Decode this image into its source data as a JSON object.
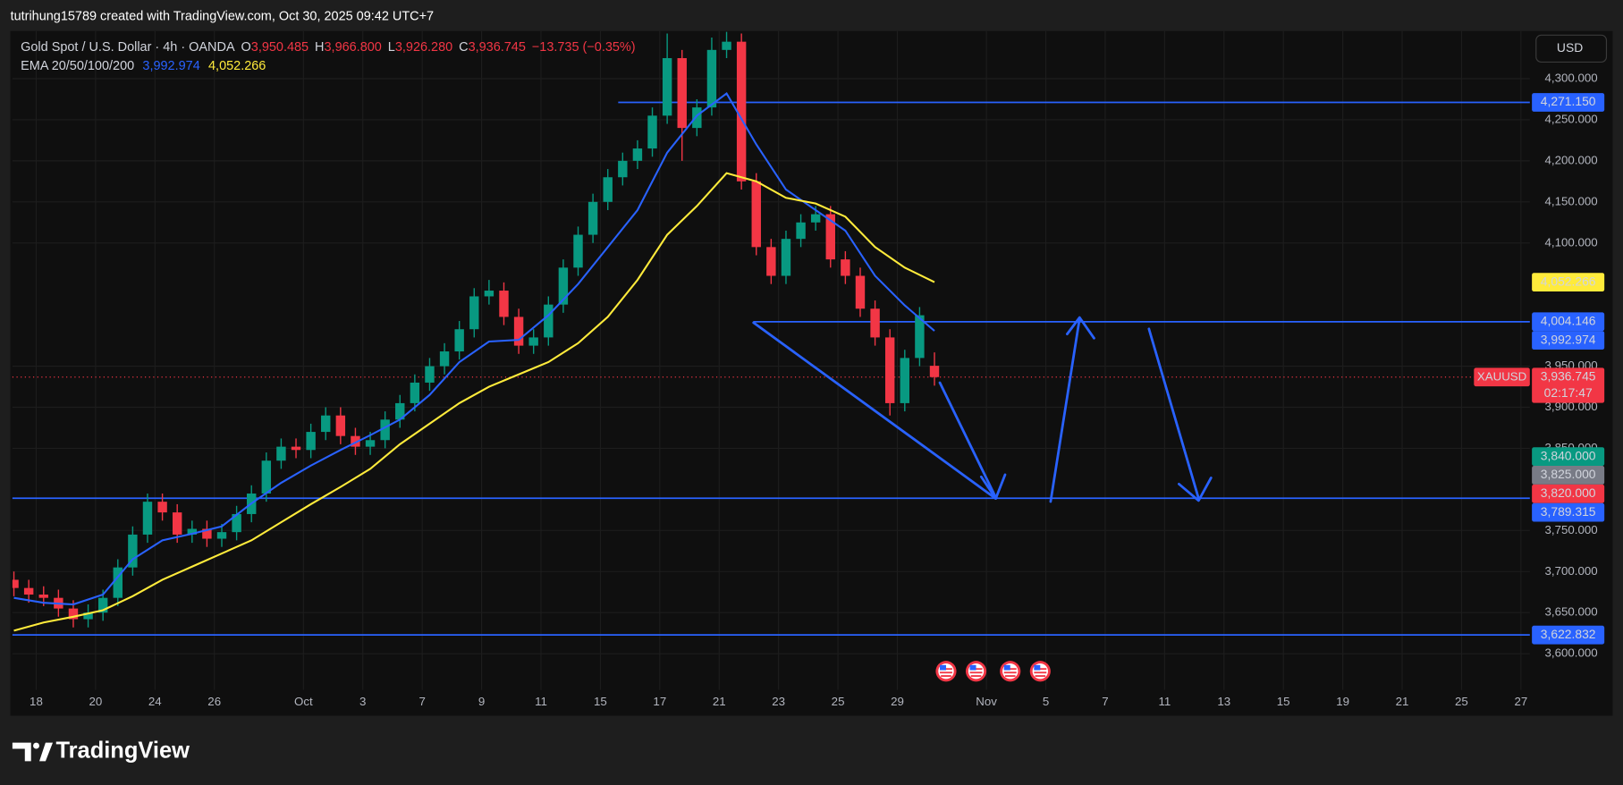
{
  "header": {
    "caption": "tutrihung15789 created with TradingView.com, Oct 30, 2025 09:42 UTC+7"
  },
  "chart_data": {
    "type": "candlestick",
    "symbol_title": "Gold Spot / U.S. Dollar · 4h · OANDA",
    "ohlc_legend": [
      {
        "label": "O",
        "value": "3,950.485"
      },
      {
        "label": "H",
        "value": "3,966.800"
      },
      {
        "label": "L",
        "value": "3,926.280"
      },
      {
        "label": "C",
        "value": "3,936.745"
      }
    ],
    "change": "−13.735 (−0.35%)",
    "indicator": "EMA 20/50/100/200",
    "currency": "USD",
    "up_color": "#089981",
    "down_color": "#f23645",
    "x": [
      -0.75,
      -0.25,
      0.25,
      0.75,
      1.25,
      1.75,
      2.25,
      2.75,
      3.25,
      3.75,
      4.25,
      4.75,
      5.25,
      5.75,
      6.25,
      6.75,
      7.25,
      7.75,
      8.25,
      8.75,
      9.25,
      9.75,
      10.25,
      10.75,
      11.25,
      11.75,
      12.25,
      12.75,
      13.25,
      13.75,
      14.25,
      14.75,
      15.25,
      15.75,
      16.25,
      16.75,
      17.25,
      17.75,
      18.25,
      18.75,
      19.25,
      19.75,
      20.25,
      20.75,
      21.25,
      21.75,
      22.25,
      22.75,
      23.25,
      23.75,
      24.25,
      24.75,
      25.25,
      25.75,
      26.25,
      26.75,
      27.25,
      27.75,
      28.25,
      28.75,
      29.25,
      29.75,
      30.25
    ],
    "open": [
      3690,
      3680,
      3672,
      3668,
      3655,
      3642,
      3650,
      3668,
      3705,
      3745,
      3785,
      3772,
      3745,
      3752,
      3740,
      3748,
      3770,
      3795,
      3835,
      3852,
      3848,
      3870,
      3890,
      3865,
      3852,
      3860,
      3885,
      3905,
      3930,
      3950,
      3968,
      3995,
      4035,
      4042,
      4010,
      3975,
      3985,
      4025,
      4070,
      4110,
      4150,
      4180,
      4200,
      4215,
      4255,
      4325,
      4240,
      4265,
      4335,
      4345,
      4175,
      4095,
      4060,
      4105,
      4125,
      4135,
      4080,
      4060,
      4020,
      3985,
      3905,
      3960,
      3950.485
    ],
    "high": [
      3700,
      3690,
      3682,
      3678,
      3665,
      3660,
      3678,
      3715,
      3755,
      3795,
      3795,
      3782,
      3762,
      3762,
      3758,
      3780,
      3805,
      3845,
      3862,
      3862,
      3880,
      3900,
      3900,
      3875,
      3870,
      3895,
      3915,
      3940,
      3960,
      3978,
      4005,
      4045,
      4055,
      4052,
      4020,
      3995,
      4035,
      4080,
      4120,
      4160,
      4190,
      4210,
      4225,
      4265,
      4355,
      4335,
      4275,
      4350,
      4357,
      4355,
      4185,
      4105,
      4115,
      4135,
      4145,
      4145,
      4090,
      4070,
      4030,
      3995,
      3970,
      4022,
      3966.8
    ],
    "low": [
      3670,
      3662,
      3658,
      3645,
      3632,
      3632,
      3640,
      3658,
      3695,
      3735,
      3762,
      3735,
      3735,
      3730,
      3730,
      3738,
      3760,
      3785,
      3825,
      3838,
      3838,
      3860,
      3855,
      3842,
      3842,
      3850,
      3875,
      3895,
      3920,
      3940,
      3958,
      3985,
      4025,
      4000,
      3965,
      3965,
      3975,
      4015,
      4060,
      4100,
      4140,
      4170,
      4190,
      4205,
      4245,
      4200,
      4230,
      4255,
      4325,
      4165,
      4085,
      4050,
      4050,
      4095,
      4115,
      4070,
      4050,
      4010,
      3975,
      3890,
      3895,
      3950,
      3926.28
    ],
    "close": [
      3680,
      3672,
      3668,
      3655,
      3642,
      3650,
      3668,
      3705,
      3745,
      3785,
      3772,
      3745,
      3752,
      3740,
      3748,
      3770,
      3795,
      3835,
      3852,
      3848,
      3870,
      3890,
      3865,
      3852,
      3860,
      3885,
      3905,
      3930,
      3950,
      3968,
      3995,
      4035,
      4042,
      4010,
      3975,
      3985,
      4025,
      4070,
      4110,
      4150,
      4180,
      4200,
      4215,
      4255,
      4325,
      4240,
      4265,
      4335,
      4345,
      4175,
      4095,
      4060,
      4105,
      4125,
      4135,
      4080,
      4060,
      4020,
      3985,
      3905,
      3960,
      4012,
      3936.745
    ],
    "ema_x": [
      -0.75,
      0.25,
      1.25,
      2.25,
      3.25,
      4.25,
      5.25,
      6.25,
      7.25,
      8.25,
      9.25,
      10.25,
      11.25,
      12.25,
      13.25,
      14.25,
      15.25,
      16.25,
      17.25,
      18.25,
      19.25,
      20.25,
      21.25,
      22.25,
      23.25,
      24.25,
      25.25,
      26.25,
      27.25,
      28.25,
      29.25,
      30.25
    ],
    "ema": [
      {
        "color": "#2962ff",
        "legend_value": "3,992.974",
        "values": [
          3668,
          3662,
          3660,
          3672,
          3715,
          3738,
          3746,
          3755,
          3783,
          3808,
          3829,
          3848,
          3866,
          3885,
          3915,
          3955,
          3980,
          3982,
          4012,
          4050,
          4095,
          4140,
          4210,
          4255,
          4282,
          4220,
          4165,
          4140,
          4115,
          4060,
          4024,
          3992.974
        ]
      },
      {
        "color": "#ffeb3b",
        "legend_value": "4,052.266",
        "values": [
          3628,
          3638,
          3645,
          3653,
          3670,
          3690,
          3706,
          3722,
          3738,
          3760,
          3782,
          3803,
          3825,
          3855,
          3880,
          3905,
          3925,
          3940,
          3955,
          3978,
          4010,
          4055,
          4110,
          4145,
          4185,
          4175,
          4155,
          4148,
          4132,
          4095,
          4070,
          4052.266
        ]
      }
    ],
    "xlim": [
      -0.8,
      50.3
    ],
    "xticks": [
      {
        "value": 0,
        "label": "18"
      },
      {
        "value": 2,
        "label": "20"
      },
      {
        "value": 4,
        "label": "24"
      },
      {
        "value": 6,
        "label": "26"
      },
      {
        "value": 9,
        "label": "Oct"
      },
      {
        "value": 11,
        "label": "3"
      },
      {
        "value": 13,
        "label": "7"
      },
      {
        "value": 15,
        "label": "9"
      },
      {
        "value": 17,
        "label": "11"
      },
      {
        "value": 19,
        "label": "15"
      },
      {
        "value": 21,
        "label": "17"
      },
      {
        "value": 23,
        "label": "21"
      },
      {
        "value": 25,
        "label": "23"
      },
      {
        "value": 27,
        "label": "25"
      },
      {
        "value": 29,
        "label": "29"
      },
      {
        "value": 32,
        "label": "Nov"
      },
      {
        "value": 34,
        "label": "5"
      },
      {
        "value": 36,
        "label": "7"
      },
      {
        "value": 38,
        "label": "11"
      },
      {
        "value": 40,
        "label": "13"
      },
      {
        "value": 42,
        "label": "15"
      },
      {
        "value": 44,
        "label": "19"
      },
      {
        "value": 46,
        "label": "21"
      },
      {
        "value": 48,
        "label": "25"
      },
      {
        "value": 50,
        "label": "27"
      }
    ],
    "ylim": [
      3556,
      4358
    ],
    "yticks": [
      {
        "value": 4300,
        "label": "4,300.000"
      },
      {
        "value": 4250,
        "label": "4,250.000"
      },
      {
        "value": 4200,
        "label": "4,200.000"
      },
      {
        "value": 4150,
        "label": "4,150.000"
      },
      {
        "value": 4100,
        "label": "4,100.000"
      },
      {
        "value": 3950,
        "label": "3,950.000"
      },
      {
        "value": 3900,
        "label": "3,900.000"
      },
      {
        "value": 3850,
        "label": "3,850.000"
      },
      {
        "value": 3750,
        "label": "3,750.000"
      },
      {
        "value": 3700,
        "label": "3,700.000"
      },
      {
        "value": 3650,
        "label": "3,650.000"
      },
      {
        "value": 3600,
        "label": "3,600.000"
      }
    ],
    "grid": true,
    "levels": [
      {
        "value": 4271.15,
        "from": 19.6,
        "color": "#2962ff"
      },
      {
        "value": 4004.146,
        "from": 24.15,
        "color": "#2962ff"
      },
      {
        "value": 3789.315,
        "color": "#2962ff"
      },
      {
        "value": 3622.832,
        "color": "#2962ff"
      }
    ],
    "axis_tags": [
      {
        "value": 4271.15,
        "label": "4,271.150",
        "color": "#2962ff",
        "text_color": "#ffffff"
      },
      {
        "value": 4052.266,
        "label": "4,052.266",
        "color": "#ffeb3b",
        "text_color": "#000000"
      },
      {
        "value": 4004.146,
        "label": "4,004.146",
        "color": "#2962ff",
        "text_color": "#ffffff"
      },
      {
        "value": 3992.974,
        "label": "3,992.974",
        "color": "#2962ff",
        "text_color": "#ffffff"
      },
      {
        "value": 3936.745,
        "label": "3,936.745",
        "symbol": "XAUUSD",
        "countdown": "02:17:47",
        "color": "#f23645",
        "text_color": "#ffffff"
      },
      {
        "value": 3840,
        "label": "3,840.000",
        "color": "#089981",
        "text_color": "#ffffff"
      },
      {
        "value": 3825,
        "label": "3,825.000",
        "color": "#787b86",
        "text_color": "#ffffff"
      },
      {
        "value": 3820,
        "label": "3,820.000",
        "color": "#f23645",
        "text_color": "#ffffff"
      },
      {
        "value": 3789.315,
        "label": "3,789.315",
        "color": "#2962ff",
        "text_color": "#ffffff"
      },
      {
        "value": 3622.832,
        "label": "3,622.832",
        "color": "#2962ff",
        "text_color": "#ffffff"
      }
    ]
  },
  "footer": {
    "brand": "TradingView"
  }
}
